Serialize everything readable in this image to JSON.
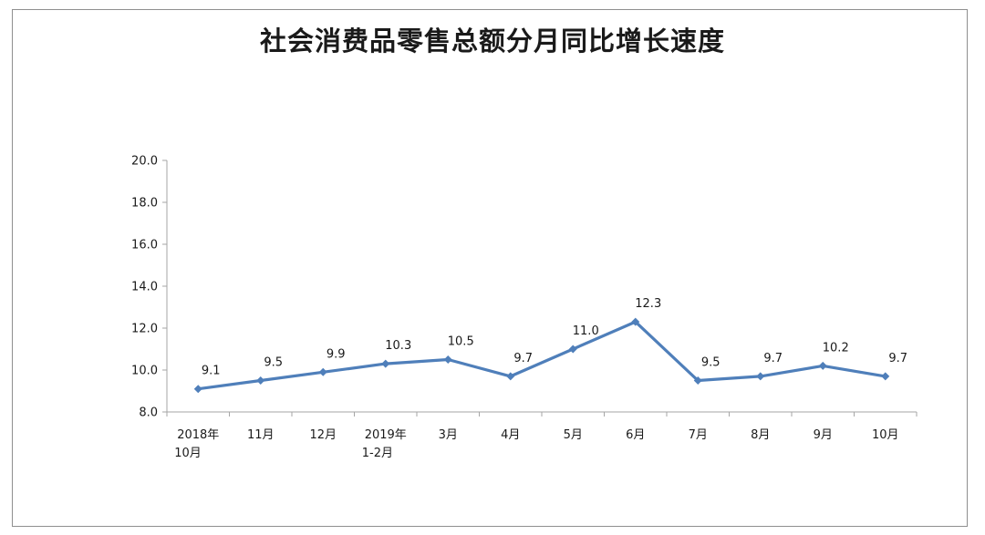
{
  "chart_data": {
    "type": "line",
    "title": "社会消费品零售总额分月同比增长速度",
    "xlabel": "",
    "ylabel": "",
    "categories": [
      [
        "2018年",
        "10月"
      ],
      [
        "11月"
      ],
      [
        "12月"
      ],
      [
        "2019年",
        "1-2月"
      ],
      [
        "3月"
      ],
      [
        "4月"
      ],
      [
        "5月"
      ],
      [
        "6月"
      ],
      [
        "7月"
      ],
      [
        "8月"
      ],
      [
        "9月"
      ],
      [
        "10月"
      ]
    ],
    "series": [
      {
        "values": [
          9.1,
          9.5,
          9.9,
          10.3,
          10.5,
          9.7,
          11.0,
          12.3,
          9.5,
          9.7,
          10.2,
          9.7
        ],
        "data_labels": [
          "9.1",
          "9.5",
          "9.9",
          "10.3",
          "10.5",
          "9.7",
          "11.0",
          "12.3",
          "9.5",
          "9.7",
          "10.2",
          "9.7"
        ],
        "color": "#4f7fba"
      }
    ],
    "ylim": [
      8.0,
      20.0
    ],
    "yticks": [
      "8.0",
      "10.0",
      "12.0",
      "14.0",
      "16.0",
      "18.0",
      "20.0"
    ],
    "grid": false,
    "legend": "none"
  }
}
